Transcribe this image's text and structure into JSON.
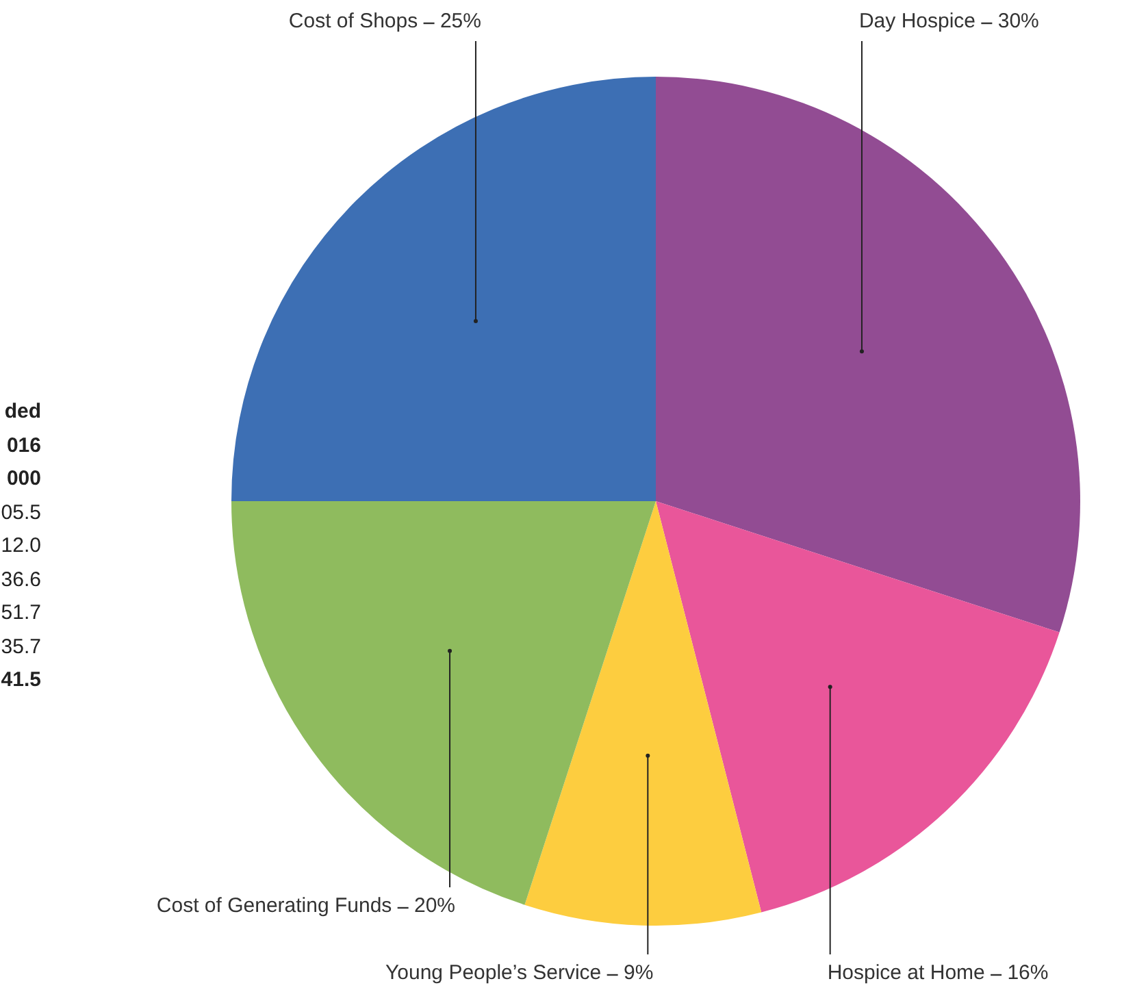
{
  "chart_data": {
    "type": "pie",
    "categories": [
      "Day Hospice",
      "Hospice at Home",
      "Young People’s Service",
      "Cost of Generating Funds",
      "Cost of Shops"
    ],
    "values": [
      30,
      16,
      9,
      20,
      25
    ],
    "colors": [
      "#924c93",
      "#e9569a",
      "#fdcd3f",
      "#8fbb5e",
      "#3d6fb4"
    ],
    "value_labels": [
      "30%",
      "16%",
      "9%",
      "20%",
      "25%"
    ],
    "annotations": [
      "ded",
      "016",
      "000",
      "05.5",
      "12.0",
      "36.6",
      "51.7",
      "35.7",
      "41.5"
    ]
  }
}
